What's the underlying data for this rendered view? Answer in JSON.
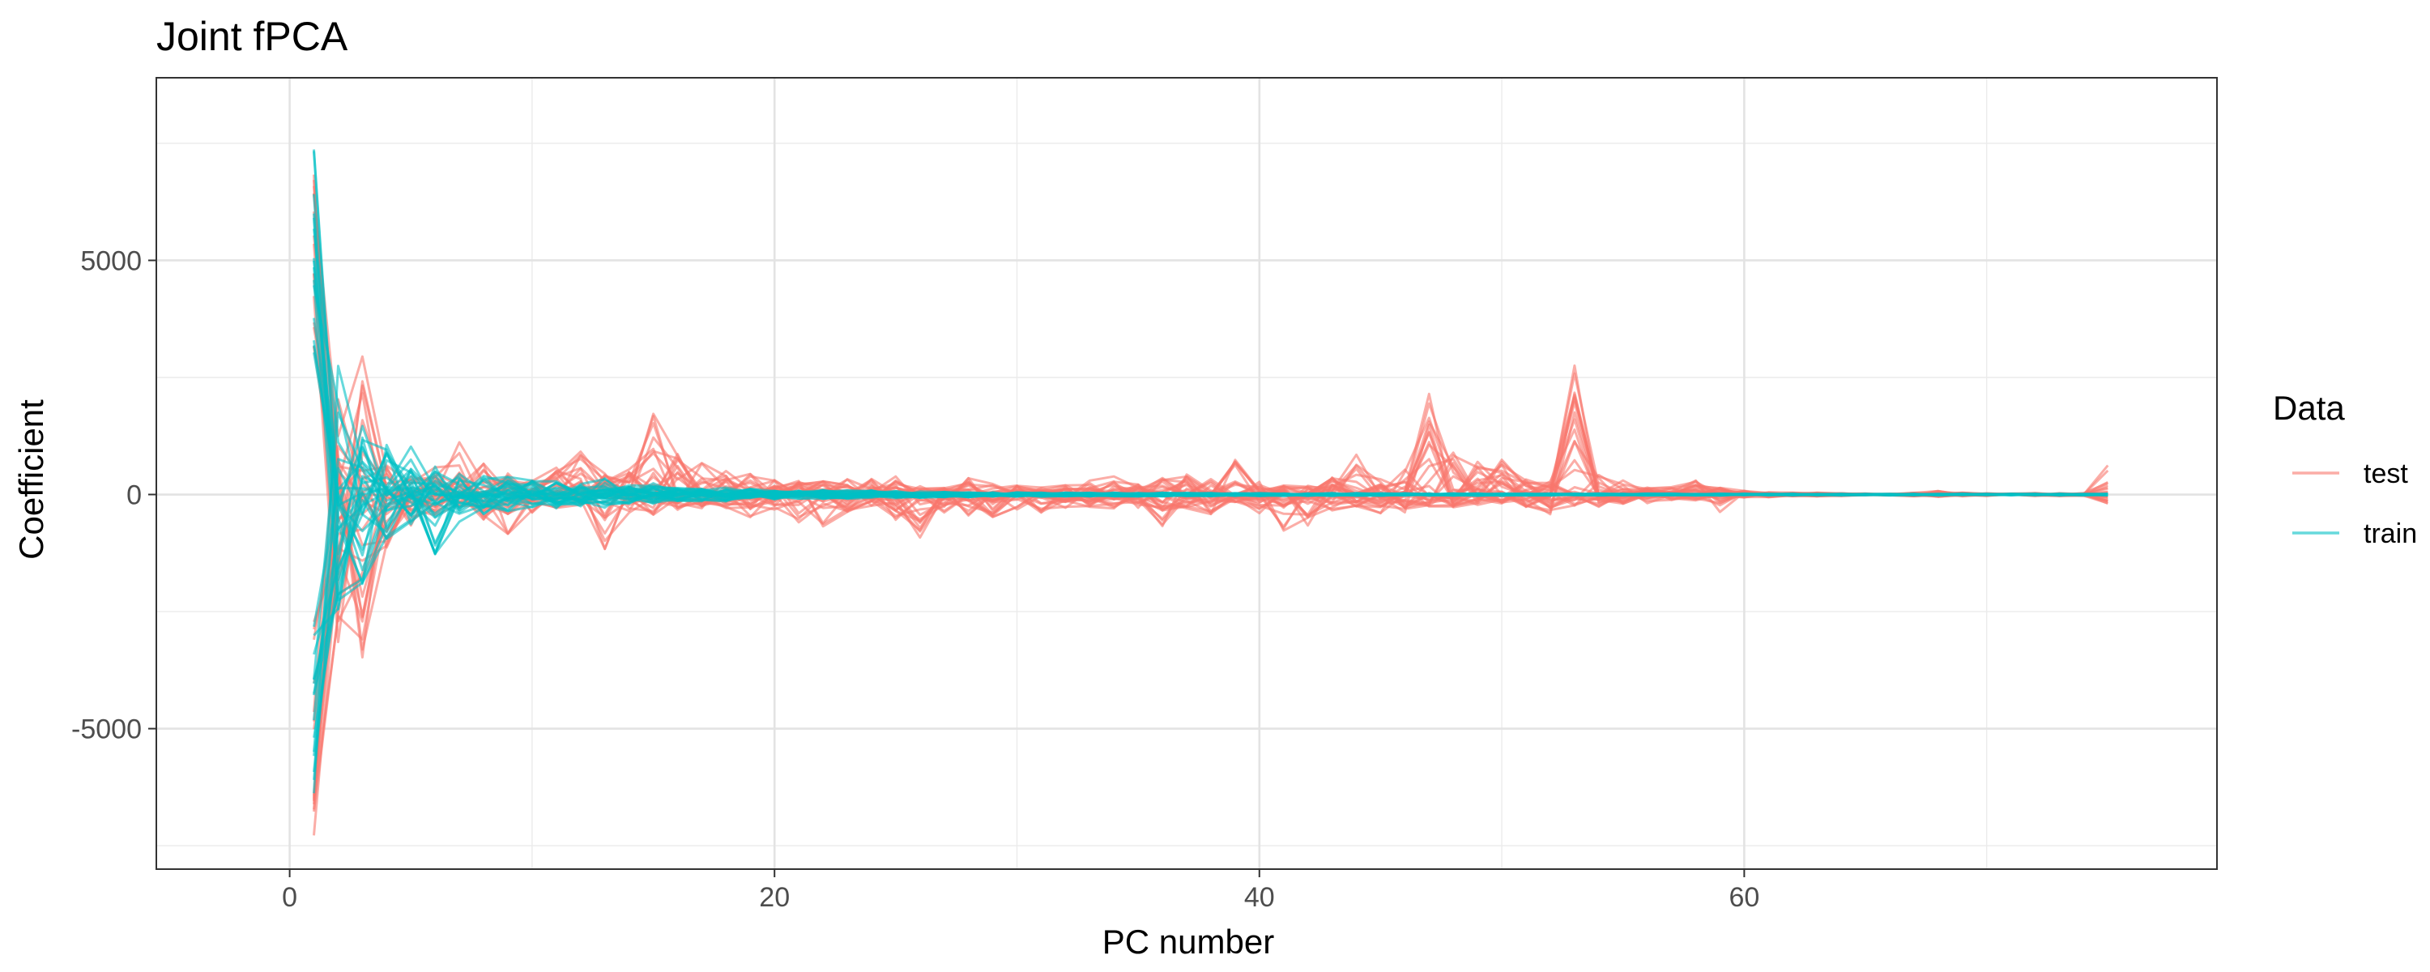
{
  "chart_data": {
    "type": "line",
    "title": "Joint fPCA",
    "xlabel": "PC number",
    "ylabel": "Coefficient",
    "xlim": [
      -5.5,
      79.5
    ],
    "ylim": [
      -8000,
      8900
    ],
    "x_ticks": [
      0,
      20,
      40,
      60
    ],
    "x_tick_labels": [
      "0",
      "20",
      "40",
      "60"
    ],
    "y_ticks": [
      -5000,
      0,
      5000
    ],
    "y_tick_labels": [
      "-5000",
      "0",
      "5000"
    ],
    "grid": true,
    "legend": {
      "title": "Data",
      "position": "right",
      "entries": [
        {
          "label": "test",
          "color": "#F8766D"
        },
        {
          "label": "train",
          "color": "#00BFC4"
        }
      ]
    },
    "series": [
      {
        "name": "test",
        "color": "#F8766D",
        "n_curves": 30,
        "pc": [
          1,
          75
        ],
        "envelope_max": [
          6900,
          2200,
          2950,
          650,
          550,
          600,
          1300,
          700,
          450,
          350,
          600,
          950,
          450,
          550,
          1850,
          900,
          700,
          550,
          450,
          400,
          300,
          300,
          400,
          350,
          400,
          200,
          150,
          350,
          250,
          200,
          250,
          200,
          300,
          450,
          250,
          400,
          800,
          350,
          750,
          300,
          200,
          250,
          400,
          850,
          350,
          600,
          2150,
          900,
          700,
          1400,
          450,
          300,
          2800,
          450,
          300,
          200,
          180,
          300,
          150,
          80,
          60,
          40,
          40,
          30,
          25,
          20,
          40,
          80,
          40,
          30,
          20,
          30,
          30,
          30,
          700
        ],
        "envelope_min": [
          -7300,
          -3300,
          -3500,
          -1200,
          -700,
          -500,
          -350,
          -600,
          -900,
          -400,
          -300,
          -300,
          -1200,
          -400,
          -500,
          -400,
          -300,
          -300,
          -500,
          -350,
          -600,
          -700,
          -400,
          -300,
          -600,
          -950,
          -400,
          -500,
          -500,
          -500,
          -400,
          -300,
          -300,
          -300,
          -300,
          -750,
          -350,
          -450,
          -200,
          -400,
          -800,
          -700,
          -400,
          -300,
          -500,
          -400,
          -300,
          -300,
          -250,
          -200,
          -300,
          -450,
          -300,
          -300,
          -200,
          -200,
          -120,
          -150,
          -400,
          -80,
          -60,
          -40,
          -40,
          -30,
          -25,
          -20,
          -40,
          -80,
          -40,
          -30,
          -20,
          -30,
          -30,
          -30,
          -200
        ]
      },
      {
        "name": "train",
        "color": "#00BFC4",
        "n_curves": 30,
        "pc": [
          1,
          75
        ],
        "envelope_max": [
          7900,
          3300,
          1500,
          1100,
          1100,
          600,
          500,
          450,
          550,
          300,
          300,
          250,
          350,
          200,
          250,
          150,
          120,
          150,
          130,
          120,
          100,
          100,
          90,
          90,
          80,
          70,
          60,
          60,
          50,
          50,
          50,
          40,
          40,
          40,
          40,
          40,
          35,
          35,
          30,
          30,
          30,
          30,
          30,
          30,
          25,
          25,
          25,
          25,
          25,
          25,
          20,
          20,
          20,
          20,
          20,
          20,
          20,
          20,
          20,
          15,
          15,
          15,
          15,
          15,
          15,
          15,
          15,
          15,
          15,
          15,
          15,
          15,
          15,
          15,
          15
        ],
        "envelope_min": [
          -7000,
          -2500,
          -2800,
          -1000,
          -700,
          -1600,
          -650,
          -450,
          -400,
          -300,
          -300,
          -250,
          -350,
          -200,
          -200,
          -200,
          -150,
          -150,
          -130,
          -120,
          -100,
          -100,
          -90,
          -90,
          -80,
          -70,
          -60,
          -60,
          -50,
          -50,
          -50,
          -40,
          -40,
          -40,
          -40,
          -40,
          -35,
          -35,
          -30,
          -30,
          -30,
          -30,
          -30,
          -30,
          -25,
          -25,
          -25,
          -25,
          -25,
          -25,
          -20,
          -20,
          -20,
          -20,
          -20,
          -20,
          -20,
          -20,
          -20,
          -15,
          -15,
          -15,
          -15,
          -15,
          -15,
          -15,
          -15,
          -15,
          -15,
          -15,
          -15,
          -15,
          -15,
          -15,
          -15
        ]
      }
    ]
  }
}
